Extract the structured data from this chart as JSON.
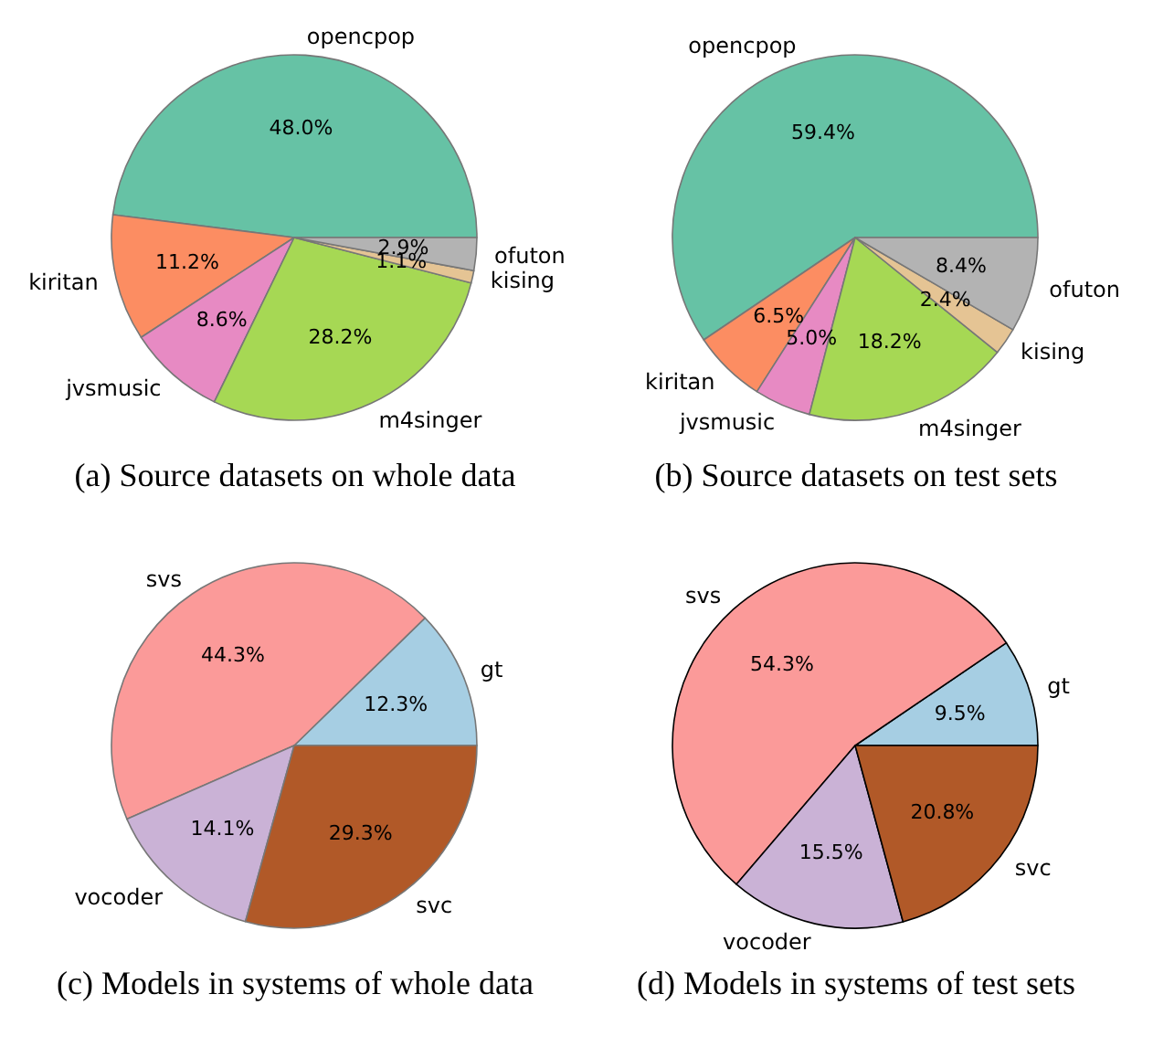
{
  "chart_data": [
    {
      "type": "pie",
      "title": "(a) Source datasets on whole data",
      "categories": [
        "opencpop",
        "kiritan",
        "jvsmusic",
        "m4singer",
        "kising",
        "ofuton"
      ],
      "values": [
        48.0,
        11.2,
        8.6,
        28.2,
        1.1,
        2.9
      ],
      "colors": [
        "#66c2a5",
        "#fc8d62",
        "#e78ac3",
        "#a6d854",
        "#e5c494",
        "#b3b3b3"
      ],
      "value_labels": [
        "48.0%",
        "11.2%",
        "8.6%",
        "28.2%",
        "1.1%",
        "2.9%"
      ]
    },
    {
      "type": "pie",
      "title": "(b) Source datasets on test sets",
      "categories": [
        "opencpop",
        "kiritan",
        "jvsmusic",
        "m4singer",
        "kising",
        "ofuton"
      ],
      "values": [
        59.4,
        6.5,
        5.0,
        18.2,
        2.4,
        8.4
      ],
      "colors": [
        "#66c2a5",
        "#fc8d62",
        "#e78ac3",
        "#a6d854",
        "#e5c494",
        "#b3b3b3"
      ],
      "value_labels": [
        "59.4%",
        "6.5%",
        "5.0%",
        "18.2%",
        "2.4%",
        "8.4%"
      ]
    },
    {
      "type": "pie",
      "title": "(c) Models in systems of whole data",
      "categories": [
        "gt",
        "svs",
        "vocoder",
        "svc"
      ],
      "values": [
        12.3,
        44.3,
        14.1,
        29.3
      ],
      "colors": [
        "#a6cee3",
        "#fb9a99",
        "#cab2d6",
        "#b15928"
      ],
      "value_labels": [
        "12.3%",
        "44.3%",
        "14.1%",
        "29.3%"
      ]
    },
    {
      "type": "pie",
      "title": "(d) Models in systems of test sets",
      "categories": [
        "gt",
        "svs",
        "vocoder",
        "svc"
      ],
      "values": [
        9.5,
        54.3,
        15.5,
        20.8
      ],
      "colors": [
        "#a6cee3",
        "#fb9a99",
        "#cab2d6",
        "#b15928"
      ],
      "value_labels": [
        "9.5%",
        "54.3%",
        "15.5%",
        "20.8%"
      ]
    }
  ]
}
